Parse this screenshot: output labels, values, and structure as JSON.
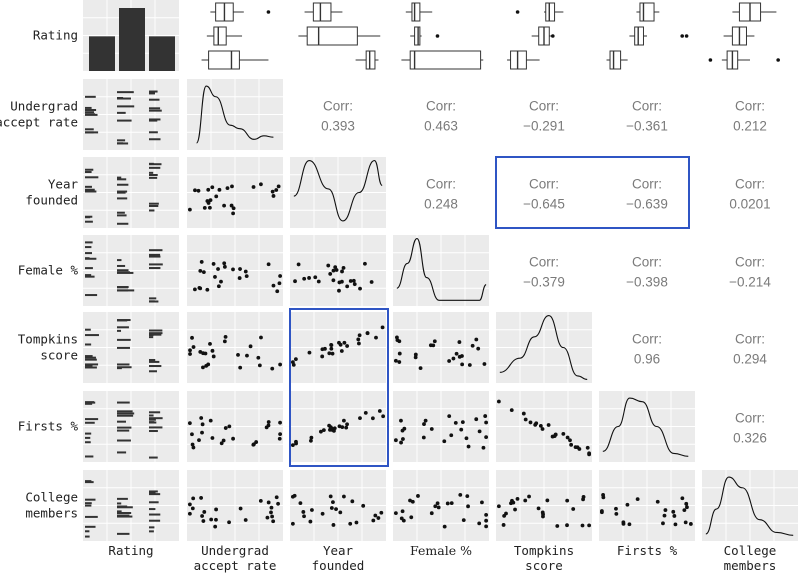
{
  "chart_data": {
    "type": "scatter",
    "variables": [
      "Rating",
      "Undergrad accept rate",
      "Year founded",
      "Female %",
      "Tompkins score",
      "Firsts %",
      "College members"
    ],
    "row_labels": [
      [
        "Rating"
      ],
      [
        "Undergrad",
        "accept rate"
      ],
      [
        "Year",
        "founded"
      ],
      [
        "Female %"
      ],
      [
        "Tompkins",
        "score"
      ],
      [
        "Firsts %"
      ],
      [
        "College",
        "members"
      ]
    ],
    "column_labels": [
      [
        "Rating"
      ],
      [
        "Undergrad",
        "accept rate"
      ],
      [
        "Year",
        "founded"
      ],
      [
        "Female %"
      ],
      [
        "Tompkins",
        "score"
      ],
      [
        "Firsts %"
      ],
      [
        "College",
        "members"
      ]
    ],
    "correlation_label": "Corr:",
    "correlations": [
      {
        "row": 2,
        "col": 3,
        "value": "0.393",
        "highlight": "none"
      },
      {
        "row": 2,
        "col": 4,
        "value": "0.463",
        "highlight": "none"
      },
      {
        "row": 2,
        "col": 5,
        "value": "−0.291",
        "highlight": "none"
      },
      {
        "row": 2,
        "col": 6,
        "value": "−0.361",
        "highlight": "none"
      },
      {
        "row": 2,
        "col": 7,
        "value": "0.212",
        "highlight": "none"
      },
      {
        "row": 3,
        "col": 4,
        "value": "0.248",
        "highlight": "none"
      },
      {
        "row": 3,
        "col": 5,
        "value": "−0.645",
        "highlight": "negative"
      },
      {
        "row": 3,
        "col": 6,
        "value": "−0.639",
        "highlight": "negative"
      },
      {
        "row": 3,
        "col": 7,
        "value": "0.0201",
        "highlight": "none"
      },
      {
        "row": 4,
        "col": 5,
        "value": "−0.379",
        "highlight": "none"
      },
      {
        "row": 4,
        "col": 6,
        "value": "−0.398",
        "highlight": "none"
      },
      {
        "row": 4,
        "col": 7,
        "value": "−0.214",
        "highlight": "none"
      },
      {
        "row": 5,
        "col": 6,
        "value": "0.96",
        "highlight": "positive"
      },
      {
        "row": 5,
        "col": 7,
        "value": "0.294",
        "highlight": "none"
      },
      {
        "row": 6,
        "col": 7,
        "value": "0.326",
        "highlight": "none"
      }
    ],
    "rating_bar_heights": [
      0.55,
      1.0,
      0.55
    ],
    "highlight_boxes": [
      "Year founded vs Tompkins score and Firsts % correlations",
      "Year founded column vs Tompkins score and Firsts % scatter plots"
    ],
    "colors": {
      "panel": "#ebebeb",
      "grid": "#ffffff",
      "bar": "#333333",
      "point": "#111111",
      "corr_text": "#7a7a7a",
      "negative": "#8b1a1a",
      "positive": "#3f7f1f",
      "highlight_box": "#2f55c4"
    },
    "grid": true
  }
}
